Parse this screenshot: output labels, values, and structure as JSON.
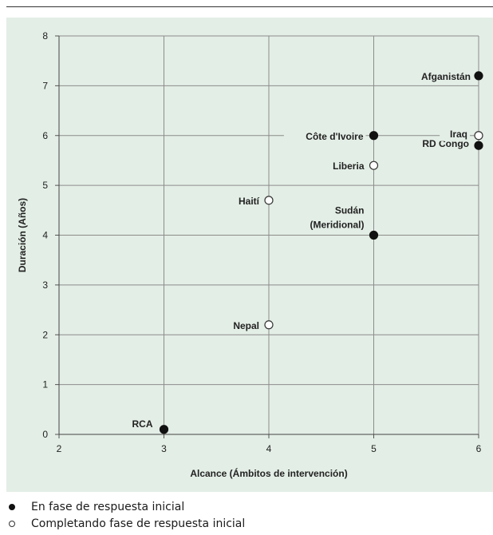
{
  "chart_data": {
    "type": "scatter",
    "title": "",
    "xlabel": "Alcance (Ámbitos de intervención)",
    "ylabel": "Duración (Años)",
    "xlim": [
      2,
      6
    ],
    "ylim": [
      0,
      8
    ],
    "x_ticks": [
      2,
      3,
      4,
      5,
      6
    ],
    "y_ticks": [
      0,
      1,
      2,
      3,
      4,
      5,
      6,
      7,
      8
    ],
    "grid": true,
    "legend_position": "bottom",
    "colors": {
      "panel_background": "#e3eee6",
      "gridline": "#8c8c8c",
      "marker": "#111111"
    },
    "series": [
      {
        "name": "En fase de respuesta inicial",
        "marker": "filled",
        "points": [
          {
            "label": "Afganistán",
            "x": 6,
            "y": 7.2
          },
          {
            "label": "Côte d'Ivoire",
            "x": 5,
            "y": 6.0
          },
          {
            "label": "RD Congo",
            "x": 6,
            "y": 5.8
          },
          {
            "label": "Sudán\n(Meridional)",
            "x": 5,
            "y": 4.0
          },
          {
            "label": "RCA",
            "x": 3,
            "y": 0.1
          }
        ]
      },
      {
        "name": "Completando fase de respuesta inicial",
        "marker": "hollow",
        "points": [
          {
            "label": "Iraq",
            "x": 6,
            "y": 6.0
          },
          {
            "label": "Liberia",
            "x": 5,
            "y": 5.4
          },
          {
            "label": "Haití",
            "x": 4,
            "y": 4.7
          },
          {
            "label": "Nepal",
            "x": 4,
            "y": 2.2
          }
        ]
      }
    ]
  }
}
